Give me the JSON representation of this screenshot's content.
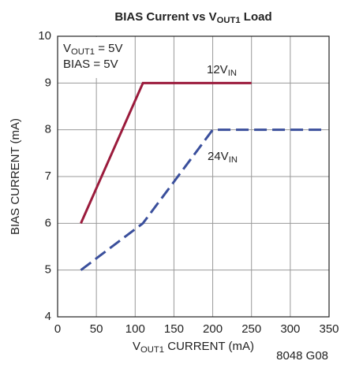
{
  "chart_data": {
    "type": "line",
    "title": [
      "BIAS Current vs V",
      "OUT1",
      " Load"
    ],
    "xlabel": [
      "V",
      "OUT1",
      " CURRENT (mA)"
    ],
    "ylabel": "BIAS CURRENT (mA)",
    "xlim": [
      0,
      350
    ],
    "xticks": [
      0,
      50,
      100,
      150,
      200,
      250,
      300,
      350
    ],
    "ylim": [
      4,
      10
    ],
    "yticks": [
      4,
      5,
      6,
      7,
      8,
      9,
      10
    ],
    "grid": true,
    "series": [
      {
        "label": [
          "12V",
          "IN"
        ],
        "color": "#9b1b3c",
        "dash": false,
        "x": [
          30,
          110,
          250
        ],
        "values": [
          6,
          9,
          9
        ]
      },
      {
        "label": [
          "24V",
          "IN"
        ],
        "color": "#3a4f9c",
        "dash": true,
        "x": [
          30,
          110,
          200,
          345
        ],
        "values": [
          5,
          6,
          8,
          8
        ]
      }
    ],
    "conditions": [
      [
        "V",
        "OUT1",
        " = 5V"
      ],
      [
        "BIAS = 5V"
      ]
    ],
    "footnote": "8048 G08"
  }
}
